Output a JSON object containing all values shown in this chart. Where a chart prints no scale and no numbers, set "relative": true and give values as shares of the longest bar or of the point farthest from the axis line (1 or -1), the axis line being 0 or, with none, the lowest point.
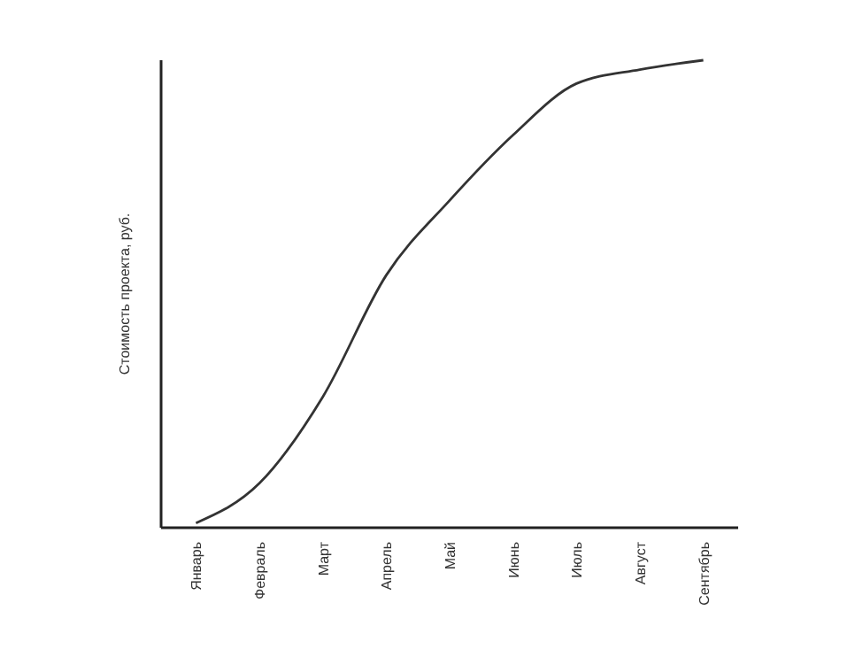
{
  "chart_data": {
    "type": "line",
    "relative": true,
    "ylabel": "Стоимость проекта, руб.",
    "categories": [
      "Январь",
      "Февраль",
      "Март",
      "Апрель",
      "Май",
      "Июнь",
      "Июль",
      "Август",
      "Сентябрь"
    ],
    "series": [
      {
        "color": "#333333",
        "values": [
          0.01,
          0.095,
          0.28,
          0.54,
          0.7,
          0.84,
          0.95,
          0.98,
          1
        ]
      }
    ],
    "marker": "none"
  }
}
